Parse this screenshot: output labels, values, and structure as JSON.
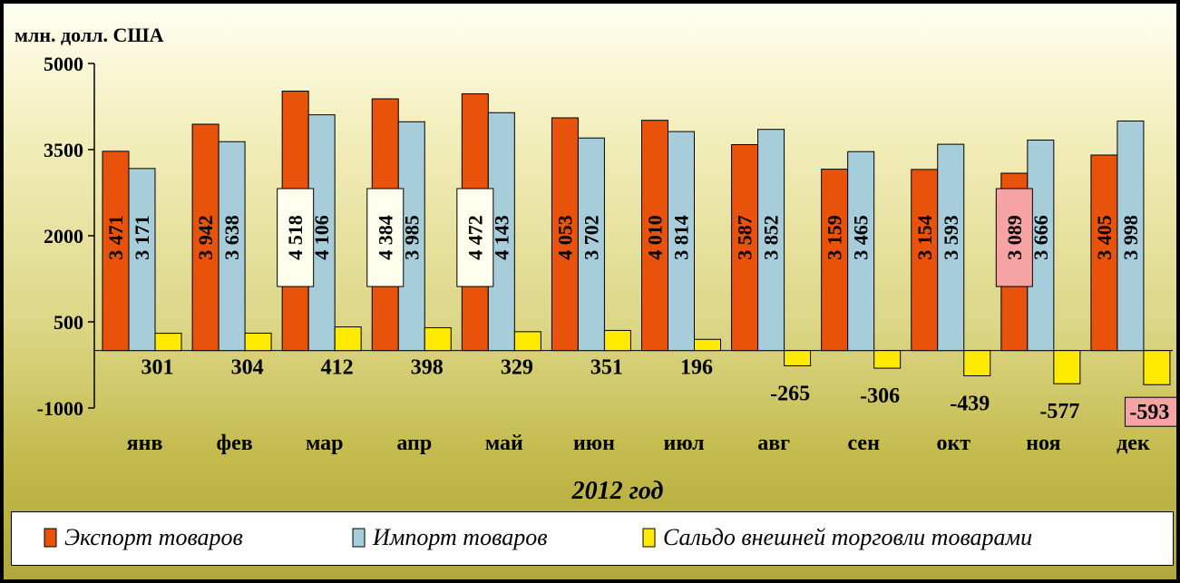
{
  "chart_data": {
    "type": "bar",
    "unit_label": "млн. долл. США",
    "xlabel": "2012 год",
    "ylim": [
      -1000,
      5000
    ],
    "y_ticks": [
      "5000",
      "3500",
      "2000",
      "500",
      "-1000"
    ],
    "y_tick_values": [
      5000,
      3500,
      2000,
      500,
      -1000
    ],
    "grid": false,
    "legend_position": "bottom",
    "categories": [
      "янв",
      "фев",
      "мар",
      "апр",
      "май",
      "июн",
      "июл",
      "авг",
      "сен",
      "окт",
      "ноя",
      "дек"
    ],
    "series": [
      {
        "name": "Экспорт товаров",
        "color": "#e8520a",
        "values": [
          3471,
          3942,
          4518,
          4384,
          4472,
          4053,
          4010,
          3587,
          3159,
          3154,
          3089,
          3405
        ],
        "labels": [
          "3 471",
          "3 942",
          "4 518",
          "4 384",
          "4 472",
          "4 053",
          "4 010",
          "3 587",
          "3 159",
          "3 154",
          "3 089",
          "3 405"
        ]
      },
      {
        "name": "Импорт товаров",
        "color": "#a7cddb",
        "values": [
          3171,
          3638,
          4106,
          3985,
          4143,
          3702,
          3814,
          3852,
          3465,
          3593,
          3666,
          3998
        ],
        "labels": [
          "3 171",
          "3 638",
          "4 106",
          "3 985",
          "4 143",
          "3 702",
          "3 814",
          "3 852",
          "3 465",
          "3 593",
          "3 666",
          "3 998"
        ]
      },
      {
        "name": "Сальдо внешней торговли товарами",
        "color": "#ffea00",
        "values": [
          301,
          304,
          412,
          398,
          329,
          351,
          196,
          -265,
          -306,
          -439,
          -577,
          -593
        ],
        "labels": [
          "301",
          "304",
          "412",
          "398",
          "329",
          "351",
          "196",
          "-265",
          "-306",
          "-439",
          "-577",
          "-593"
        ]
      }
    ],
    "highlights": {
      "max_export_boxes": [
        "мар",
        "апр",
        "май"
      ],
      "min_export_box": "ноя",
      "min_balance_box": "дек"
    }
  }
}
